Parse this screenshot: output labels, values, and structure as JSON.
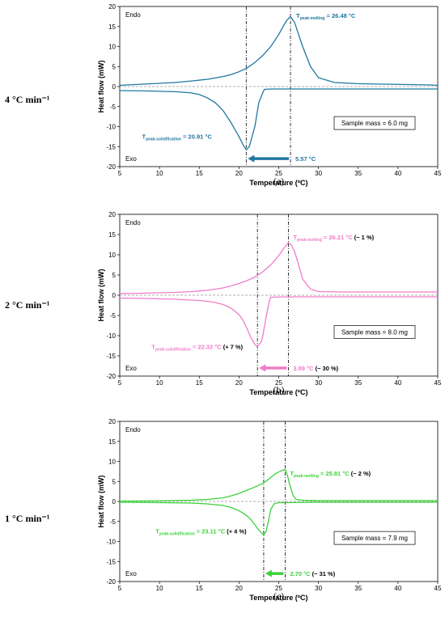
{
  "chart_data": [
    {
      "type": "line",
      "rate_label": "4 °C min⁻¹",
      "caption": "(a)",
      "color": "#1f77a0",
      "xlabel": "Temperature (ºC)",
      "ylabel": "Heat flow (mW)",
      "xlim": [
        5,
        45
      ],
      "ylim": [
        -20,
        20
      ],
      "xticks": [
        "5",
        "10",
        "15",
        "20",
        "25",
        "30",
        "35",
        "40",
        "45"
      ],
      "yticks": [
        "-20",
        "-15",
        "-10",
        "-5",
        "0",
        "5",
        "10",
        "15",
        "20"
      ],
      "endo_label": "Endo",
      "exo_label": "Exo",
      "sample_mass": "Sample mass = 6.0 mg",
      "melting": {
        "prefix": "T",
        "sub": "peak-melting",
        "value": " = 26.48 °C",
        "change": "",
        "x": 26.48
      },
      "solidification": {
        "prefix": "T",
        "sub": "peak-solidification",
        "value": " = 20.91 °C",
        "change": "",
        "x": 20.91
      },
      "delta": {
        "value": "5.57 °C",
        "change": ""
      },
      "series": [
        {
          "name": "",
          "x": [
            5,
            8,
            10,
            12,
            14,
            16,
            18,
            19,
            20,
            21,
            22,
            23,
            24,
            25,
            25.5,
            26,
            26.48,
            27,
            27.5,
            28,
            29,
            30,
            32,
            35,
            38,
            41,
            44,
            45
          ],
          "y": [
            0.3,
            0.6,
            0.8,
            1.0,
            1.4,
            1.8,
            2.5,
            3.0,
            3.7,
            4.6,
            6,
            7.8,
            10,
            13,
            14.8,
            16.5,
            17.5,
            16,
            13,
            10,
            5,
            2.2,
            1.0,
            0.7,
            0.6,
            0.5,
            0.4,
            0.3
          ]
        },
        {
          "name": "",
          "x": [
            5,
            8,
            10,
            12,
            14,
            15,
            16,
            17,
            18,
            19,
            20,
            20.5,
            20.91,
            21.3,
            22,
            22.5,
            23,
            23.2,
            24,
            26,
            30,
            35,
            40,
            44,
            45
          ],
          "y": [
            -1.0,
            -1.1,
            -1.2,
            -1.3,
            -1.6,
            -2.0,
            -2.8,
            -4.0,
            -6.0,
            -9.0,
            -12.5,
            -14.5,
            -15.8,
            -15,
            -10,
            -4,
            -1.5,
            -0.7,
            -0.6,
            -0.6,
            -0.6,
            -0.6,
            -0.6,
            -0.6,
            -0.6
          ]
        }
      ]
    },
    {
      "type": "line",
      "rate_label": "2 °C min⁻¹",
      "caption": "(b)",
      "color": "#f07cc8",
      "xlabel": "Temperature (ºC)",
      "ylabel": "Heat flow (mW)",
      "xlim": [
        5,
        45
      ],
      "ylim": [
        -20,
        20
      ],
      "xticks": [
        "5",
        "10",
        "15",
        "20",
        "25",
        "30",
        "35",
        "40",
        "45"
      ],
      "yticks": [
        "-20",
        "-15",
        "-10",
        "-5",
        "0",
        "5",
        "10",
        "15",
        "20"
      ],
      "endo_label": "Endo",
      "exo_label": "Exo",
      "sample_mass": "Sample mass = 8.0 mg",
      "melting": {
        "prefix": "T",
        "sub": "peak-melting",
        "value": " = 26.21 °C",
        "change": " (− 1 %)",
        "x": 26.21
      },
      "solidification": {
        "prefix": "T",
        "sub": "peak-solidification",
        "value": " = 22.32 °C",
        "change": " (+ 7 %)",
        "x": 22.32
      },
      "delta": {
        "value": "3.89 °C",
        "change": " (− 30 %)"
      },
      "series": [
        {
          "name": "",
          "x": [
            5,
            8,
            10,
            12,
            14,
            16,
            18,
            19,
            20,
            21,
            22,
            23,
            24,
            25,
            25.5,
            26,
            26.21,
            26.6,
            27,
            27.5,
            28,
            29,
            30,
            33,
            36,
            40,
            45
          ],
          "y": [
            0.4,
            0.5,
            0.6,
            0.7,
            0.9,
            1.2,
            1.8,
            2.3,
            2.9,
            3.6,
            4.5,
            5.8,
            7.5,
            9.8,
            11.2,
            12.5,
            13.0,
            12.4,
            10.8,
            7.5,
            4.0,
            1.5,
            0.9,
            0.8,
            0.8,
            0.8,
            0.8
          ]
        },
        {
          "name": "",
          "x": [
            5,
            8,
            10,
            12,
            14,
            15,
            16,
            17,
            18,
            19,
            20,
            20.5,
            21,
            21.5,
            22,
            22.32,
            22.8,
            23,
            23.4,
            23.8,
            24,
            26,
            30,
            35,
            40,
            45
          ],
          "y": [
            -0.7,
            -0.8,
            -0.9,
            -1.0,
            -1.2,
            -1.3,
            -1.5,
            -1.8,
            -2.3,
            -3.2,
            -4.8,
            -6.2,
            -8.2,
            -10.5,
            -12.2,
            -12.7,
            -11.5,
            -10,
            -5.5,
            -1.5,
            -0.5,
            -0.4,
            -0.4,
            -0.4,
            -0.4,
            -0.4
          ]
        }
      ]
    },
    {
      "type": "line",
      "rate_label": "1 °C min⁻¹",
      "caption": "(c)",
      "color": "#3cd23c",
      "xlabel": "Temperature (ºC)",
      "ylabel": "Heat flow (mW)",
      "xlim": [
        5,
        45
      ],
      "ylim": [
        -20,
        20
      ],
      "xticks": [
        "5",
        "10",
        "15",
        "20",
        "25",
        "30",
        "35",
        "40",
        "45"
      ],
      "yticks": [
        "-20",
        "-15",
        "-10",
        "-5",
        "0",
        "5",
        "10",
        "15",
        "20"
      ],
      "endo_label": "Endo",
      "exo_label": "Exo",
      "sample_mass": "Sample mass = 7.9 mg",
      "melting": {
        "prefix": "T",
        "sub": "peak-melting",
        "value": " = 25.81 °C",
        "change": " (− 2 %)",
        "x": 25.81
      },
      "solidification": {
        "prefix": "T",
        "sub": "peak-solidification",
        "value": " = 23.11 °C",
        "change": " (+ 4 %)",
        "x": 23.11
      },
      "delta": {
        "value": "2.70 °C",
        "change": " (− 31 %)"
      },
      "series": [
        {
          "name": "",
          "x": [
            5,
            10,
            14,
            16,
            18,
            19,
            20,
            21,
            22,
            23,
            23.5,
            24,
            24.5,
            25,
            25.5,
            25.81,
            26.1,
            26.4,
            26.8,
            27.2,
            28,
            30,
            35,
            40,
            45
          ],
          "y": [
            0.1,
            0.15,
            0.3,
            0.5,
            0.9,
            1.4,
            2.0,
            2.8,
            3.6,
            4.5,
            5.2,
            6.0,
            6.8,
            7.4,
            7.8,
            8.0,
            6.5,
            4.0,
            1.5,
            0.5,
            0.3,
            0.2,
            0.2,
            0.2,
            0.2
          ]
        },
        {
          "name": "",
          "x": [
            5,
            10,
            14,
            16,
            18,
            19,
            20,
            20.5,
            21,
            21.5,
            22,
            22.5,
            23,
            23.11,
            23.4,
            23.7,
            24,
            24.4,
            25,
            30,
            35,
            40,
            45
          ],
          "y": [
            -0.2,
            -0.3,
            -0.4,
            -0.6,
            -1.0,
            -1.5,
            -2.3,
            -2.9,
            -3.6,
            -4.5,
            -5.8,
            -7.2,
            -8.2,
            -8.4,
            -7.5,
            -5.0,
            -2.0,
            -0.6,
            -0.3,
            -0.2,
            -0.2,
            -0.2,
            -0.2
          ]
        }
      ]
    }
  ]
}
